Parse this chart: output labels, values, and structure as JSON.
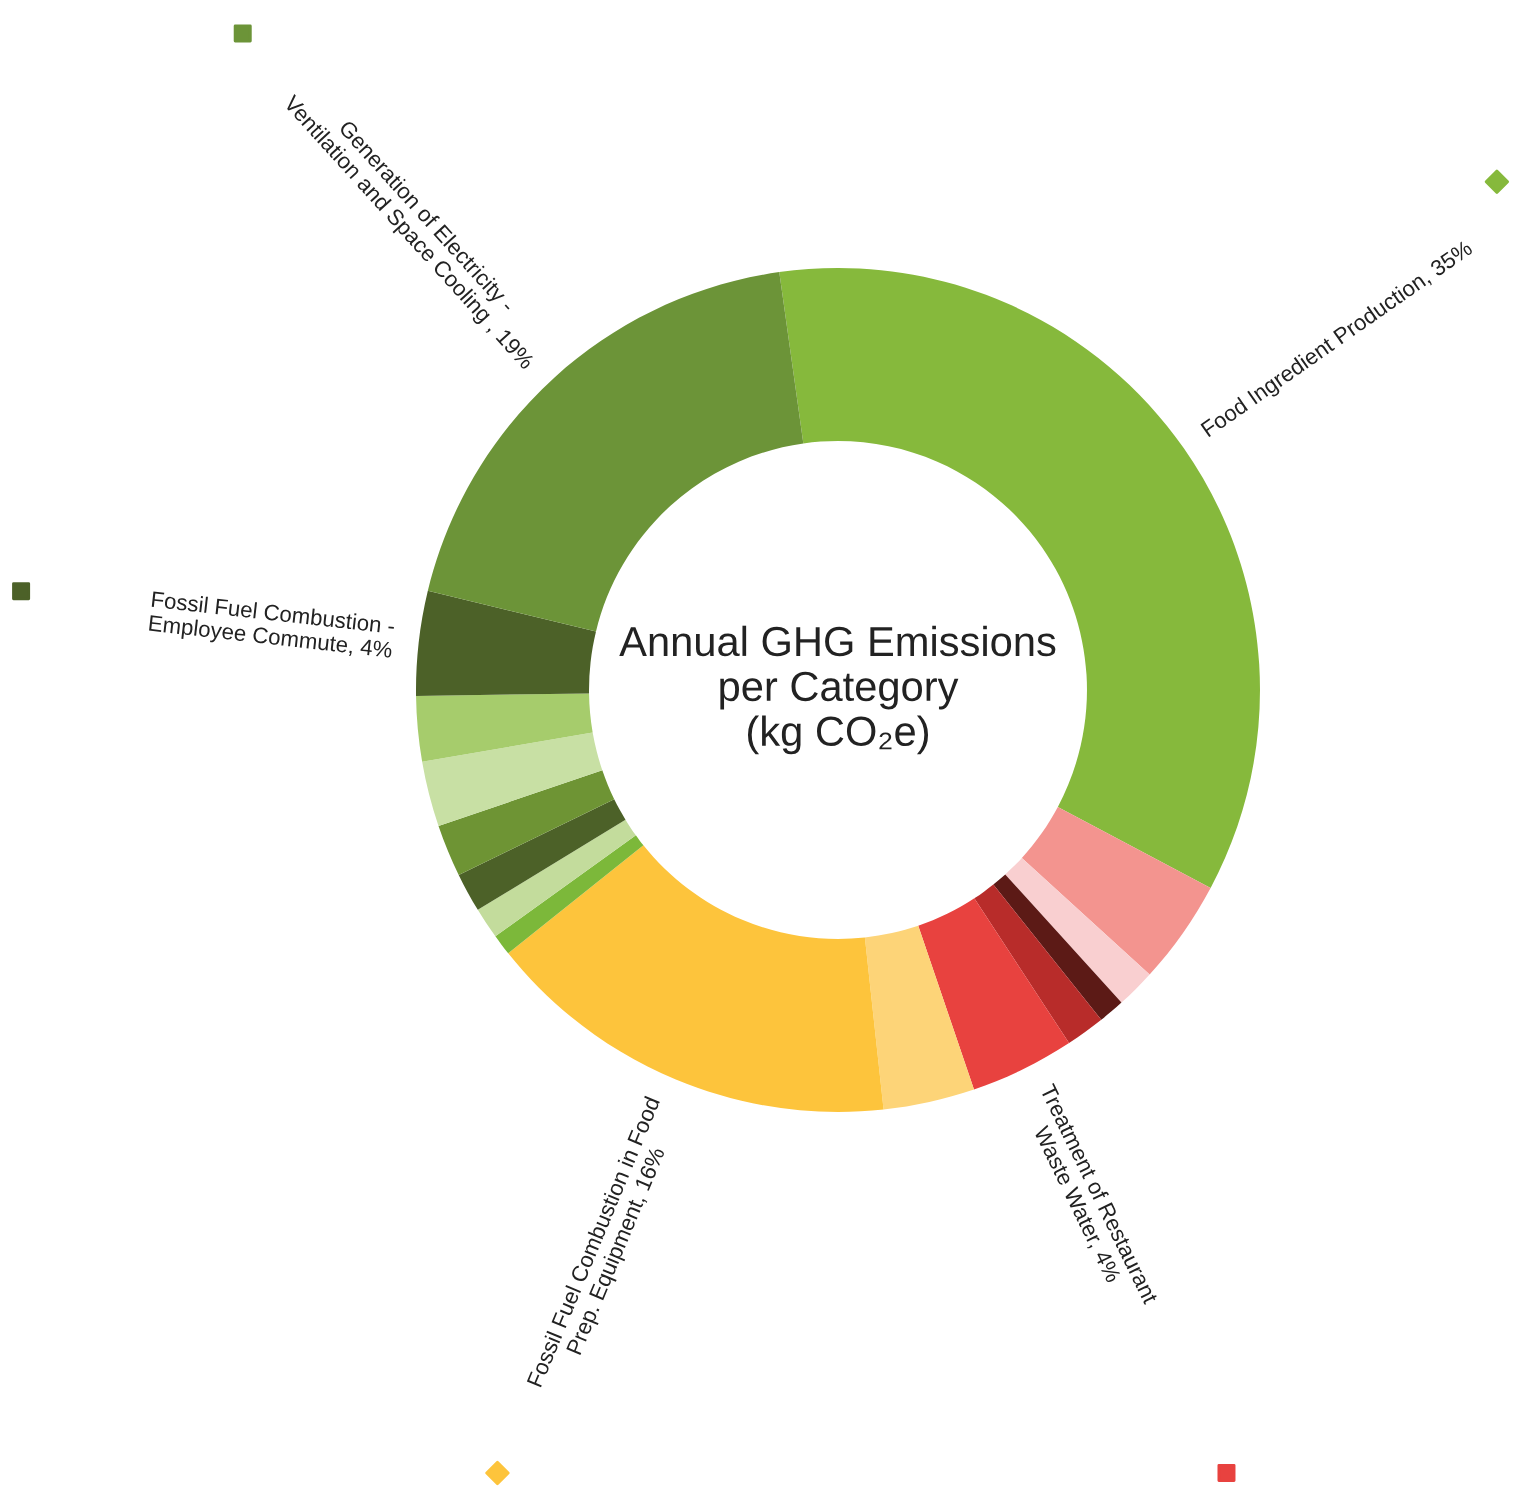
{
  "chart_data": {
    "type": "donut",
    "title": "Annual GHG Emissions\nper Category\n(kg CO₂e)",
    "categories": [
      "Food Ingredient Production, 35%",
      null,
      null,
      null,
      null,
      "Treatment of Restaurant\nWaste Water, 4%",
      null,
      "Fossil Fuel Combustion in Food\nPrep. Equipment, 16%",
      null,
      null,
      null,
      null,
      null,
      null,
      "Fossil Fuel Combustion -\nEmployee Commute, 4%",
      "Generation of Electricity -\nVentilation and Space Cooling , 19%"
    ],
    "values": [
      35,
      4,
      1.5,
      1,
      1.5,
      4,
      3.5,
      16,
      0.8,
      1.2,
      1.5,
      2,
      2.5,
      2.5,
      4,
      19
    ],
    "colors": [
      "#86b93c",
      "#f3948f",
      "#f9cfd0",
      "#5c1a16",
      "#b82c2a",
      "#e8423f",
      "#fdd478",
      "#fdc43c",
      "#7cb83a",
      "#c3dc9c",
      "#4c6128",
      "#6e9434",
      "#c8e0a4",
      "#a6cc6c",
      "#4c6128",
      "#6c9438"
    ]
  }
}
